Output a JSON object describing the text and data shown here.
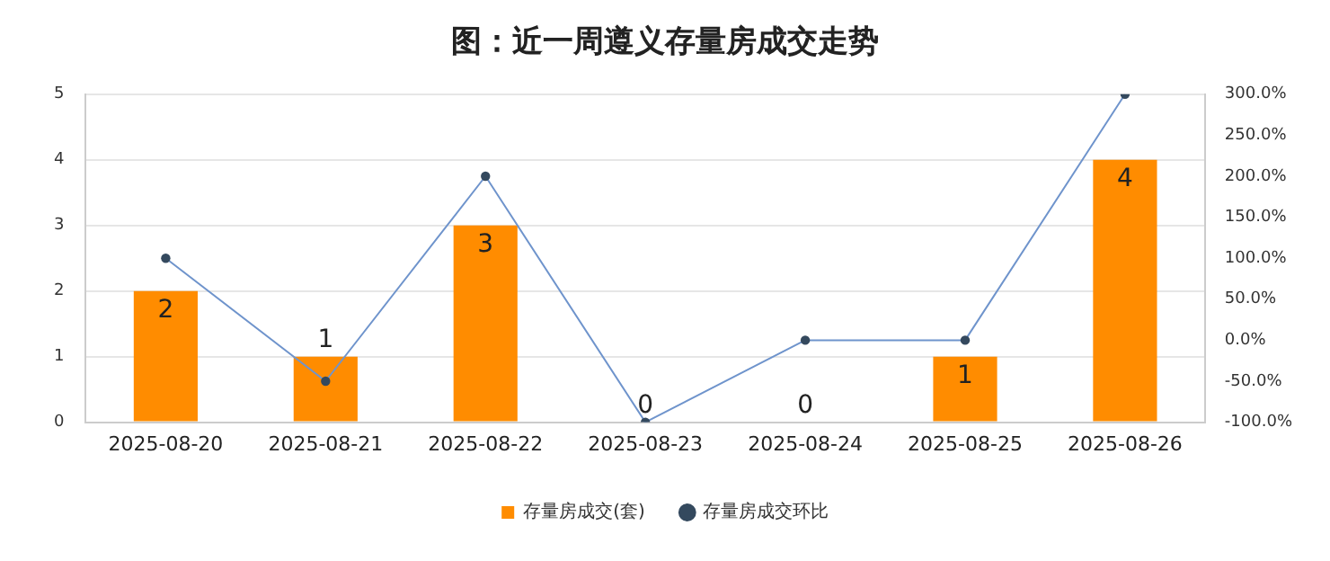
{
  "chart_data": {
    "type": "bar",
    "title": "图：近一周遵义存量房成交走势",
    "categories": [
      "2025-08-20",
      "2025-08-21",
      "2025-08-22",
      "2025-08-23",
      "2025-08-24",
      "2025-08-25",
      "2025-08-26"
    ],
    "series": [
      {
        "name": "存量房成交(套)",
        "color": "#ff8c00",
        "values": [
          2,
          1,
          3,
          0,
          0,
          1,
          4
        ],
        "data_labels": true
      },
      {
        "name": "存量房成交环比",
        "type": "line",
        "axis": "y2",
        "color": "#6f94cc",
        "marker": "circle",
        "values": [
          100,
          -50,
          200,
          -100,
          0,
          0,
          300
        ]
      }
    ],
    "ylim": [
      0,
      5
    ],
    "yticks": [
      0,
      1,
      2,
      3,
      4,
      5
    ],
    "y2lim": [
      -100,
      300
    ],
    "y2ticks": [
      {
        "value": -100,
        "label": "-100.0%"
      },
      {
        "value": -50,
        "label": "-50.0%"
      },
      {
        "value": 0,
        "label": "0.0%"
      },
      {
        "value": 50,
        "label": "50.0%"
      },
      {
        "value": 100,
        "label": "100.0%"
      },
      {
        "value": 150,
        "label": "150.0%"
      },
      {
        "value": 200,
        "label": "200.0%"
      },
      {
        "value": 250,
        "label": "250.0%"
      },
      {
        "value": 300,
        "label": "300.0%"
      }
    ],
    "grid": "y",
    "legend": "bottom"
  }
}
